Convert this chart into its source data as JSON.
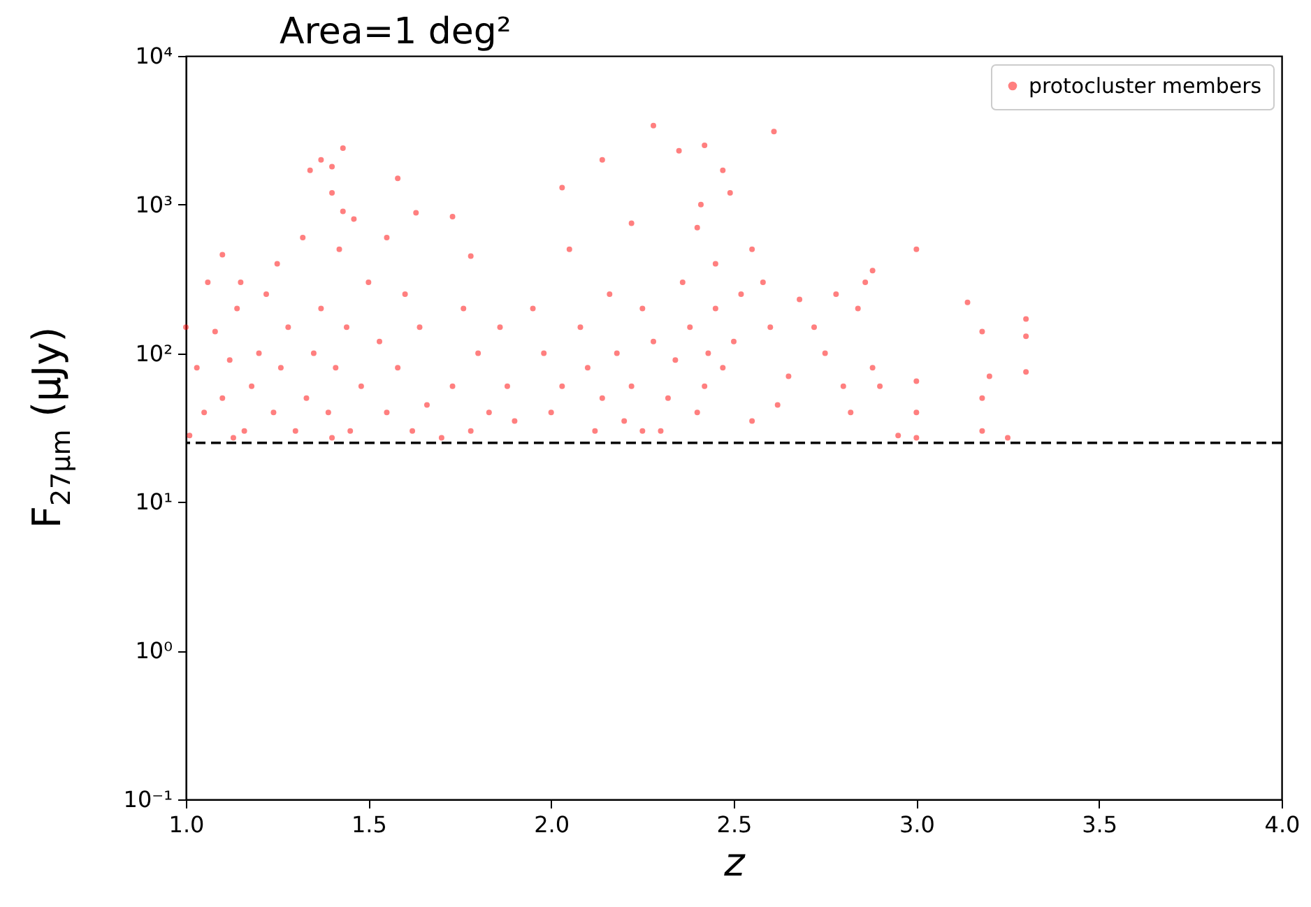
{
  "chart_data": {
    "type": "scatter",
    "title": "Area=1 deg²",
    "xlabel": "z",
    "ylabel": "F$_{27μm}$ (μJy)",
    "log": "y",
    "xlim": [
      1,
      4
    ],
    "ylim": [
      0.1,
      10000
    ],
    "xticks": [
      {
        "value": 1,
        "label": "1.0"
      },
      {
        "value": 1.5,
        "label": "1.5"
      },
      {
        "value": 2,
        "label": "2.0"
      },
      {
        "value": 2.5,
        "label": "2.5"
      },
      {
        "value": 3,
        "label": "3.0"
      },
      {
        "value": 3.5,
        "label": "3.5"
      },
      {
        "value": 4,
        "label": "4.0"
      }
    ],
    "yticks": [
      {
        "value": 0.1,
        "label": "10⁻¹"
      },
      {
        "value": 1,
        "label": "10⁰"
      },
      {
        "value": 10,
        "label": "10¹"
      },
      {
        "value": 100,
        "label": "10²"
      },
      {
        "value": 1000,
        "label": "10³"
      },
      {
        "value": 10000,
        "label": "10⁴"
      }
    ],
    "grid": false,
    "legend": "top right",
    "marker": "circle",
    "ref_lines": [
      {
        "axis": "y",
        "value": 25,
        "color": "#000000",
        "line_style": "dashed"
      }
    ],
    "series": [
      {
        "name": "protocluster members",
        "color": "#ff0000",
        "x": [
          1.34,
          1.37,
          1.4,
          1.43,
          1.58,
          1.73,
          1.78,
          2.03,
          2.14,
          2.28,
          2.35,
          2.42,
          2.47,
          2.49,
          2.61,
          2.41,
          2.22,
          1.43,
          1.4,
          1.46,
          1.55,
          1.63,
          1.25,
          1.1,
          1.06,
          2.88,
          2.86,
          3.0,
          3.14,
          3.18,
          3.3,
          3.3,
          3.2,
          3.3,
          3.18,
          3.18,
          3.0,
          3.0,
          3.0,
          3.25,
          2.95,
          2.9,
          2.88,
          2.84,
          2.78,
          2.72,
          2.75,
          2.8,
          2.82,
          2.68,
          2.65,
          2.62,
          2.6,
          2.58,
          2.55,
          2.52,
          2.5,
          2.47,
          2.45,
          2.43,
          2.42,
          2.4,
          2.38,
          2.36,
          2.34,
          2.32,
          2.3,
          2.28,
          2.25,
          2.22,
          2.2,
          2.18,
          2.16,
          2.14,
          2.12,
          2.1,
          2.08,
          2.05,
          2.03,
          2.0,
          1.98,
          1.95,
          1.9,
          1.88,
          1.86,
          1.83,
          1.8,
          1.78,
          1.76,
          1.73,
          1.7,
          1.66,
          1.64,
          1.62,
          1.6,
          1.58,
          1.55,
          1.53,
          1.5,
          1.48,
          1.45,
          1.44,
          1.42,
          1.41,
          1.39,
          1.37,
          1.35,
          1.33,
          1.3,
          1.28,
          1.26,
          1.24,
          1.22,
          1.2,
          1.18,
          1.16,
          1.14,
          1.12,
          1.1,
          1.08,
          1.05,
          1.03,
          1.01,
          1.0,
          1.15,
          1.32,
          2.45,
          2.4,
          2.25,
          2.55,
          1.4,
          1.13
        ],
        "values": [
          1700,
          2000,
          1800,
          2400,
          1500,
          830,
          450,
          1300,
          2000,
          3400,
          2300,
          2500,
          1700,
          1200,
          3100,
          1000,
          750,
          900,
          1200,
          800,
          600,
          880,
          400,
          460,
          300,
          360,
          300,
          500,
          220,
          140,
          170,
          130,
          70,
          75,
          50,
          30,
          65,
          40,
          27,
          27,
          28,
          60,
          80,
          200,
          250,
          150,
          100,
          60,
          40,
          230,
          70,
          45,
          150,
          300,
          500,
          250,
          120,
          80,
          200,
          100,
          60,
          40,
          150,
          300,
          90,
          50,
          30,
          120,
          200,
          60,
          35,
          100,
          250,
          50,
          30,
          80,
          150,
          500,
          60,
          40,
          100,
          200,
          35,
          60,
          150,
          40,
          100,
          30,
          200,
          60,
          27,
          45,
          150,
          30,
          250,
          80,
          40,
          120,
          300,
          60,
          30,
          150,
          500,
          80,
          40,
          200,
          100,
          50,
          30,
          150,
          80,
          40,
          250,
          100,
          60,
          30,
          200,
          90,
          50,
          140,
          40,
          80,
          28,
          150,
          300,
          600,
          400,
          700,
          30,
          35,
          27,
          27
        ]
      }
    ]
  }
}
